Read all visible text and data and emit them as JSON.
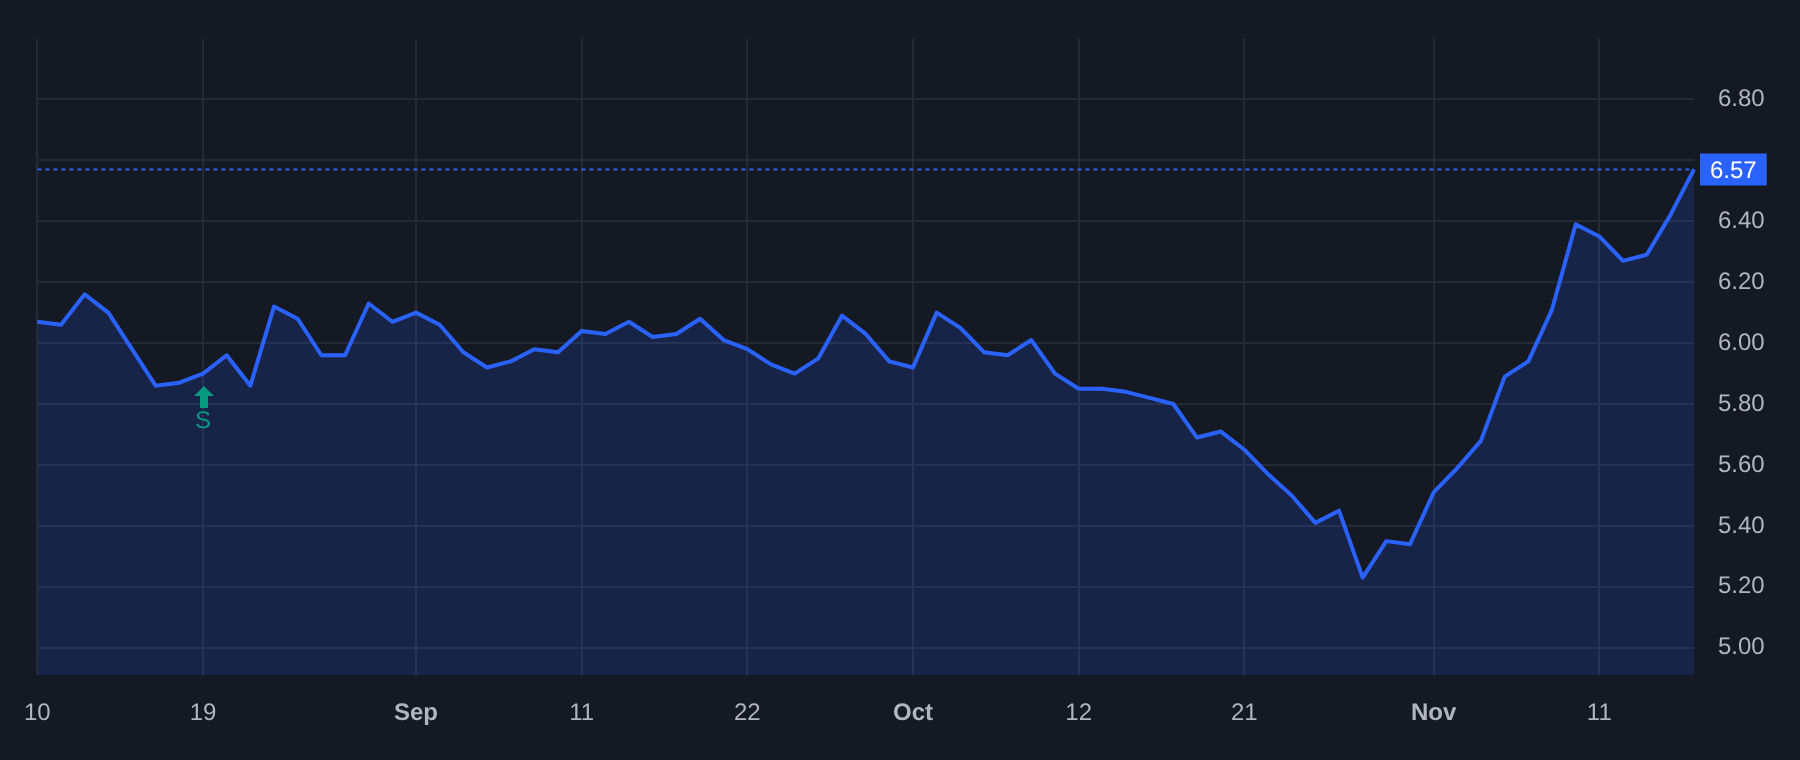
{
  "chart_data": {
    "type": "area",
    "color": "#2962ff",
    "categories": [
      "10",
      null,
      null,
      null,
      null,
      null,
      null,
      "19",
      null,
      null,
      null,
      null,
      null,
      null,
      null,
      null,
      "Sep",
      null,
      null,
      null,
      null,
      null,
      null,
      "11",
      null,
      null,
      null,
      null,
      null,
      null,
      "22",
      null,
      null,
      null,
      null,
      null,
      null,
      "Oct",
      null,
      null,
      null,
      null,
      null,
      null,
      "12",
      null,
      null,
      null,
      null,
      null,
      null,
      "21",
      null,
      null,
      null,
      null,
      null,
      null,
      null,
      "Nov",
      null,
      null,
      null,
      null,
      null,
      null,
      "11",
      null,
      null,
      null,
      null
    ],
    "values": [
      6.07,
      6.06,
      6.16,
      6.1,
      5.98,
      5.86,
      5.87,
      5.9,
      5.96,
      5.86,
      6.12,
      6.08,
      5.96,
      5.96,
      6.13,
      6.07,
      6.1,
      6.06,
      5.97,
      5.92,
      5.94,
      5.98,
      5.97,
      6.04,
      6.03,
      6.07,
      6.02,
      6.03,
      6.08,
      6.01,
      5.98,
      5.93,
      5.9,
      5.95,
      6.09,
      6.03,
      5.94,
      5.92,
      6.1,
      6.05,
      5.97,
      5.96,
      6.01,
      5.9,
      5.85,
      5.85,
      5.84,
      5.82,
      5.8,
      5.69,
      5.71,
      5.65,
      5.57,
      5.5,
      5.41,
      5.45,
      5.23,
      5.35,
      5.34,
      5.51,
      5.59,
      5.68,
      5.89,
      5.94,
      6.11,
      6.39,
      6.35,
      6.27,
      6.29,
      6.42,
      6.57
    ],
    "ylim": [
      4.91,
      7.0
    ],
    "yticks": [
      {
        "value": 5,
        "label": "5.00"
      },
      {
        "value": 5.2,
        "label": "5.20"
      },
      {
        "value": 5.4,
        "label": "5.40"
      },
      {
        "value": 5.6,
        "label": "5.60"
      },
      {
        "value": 5.8,
        "label": "5.80"
      },
      {
        "value": 6,
        "label": "6.00"
      },
      {
        "value": 6.2,
        "label": "6.20"
      },
      {
        "value": 6.4,
        "label": "6.40"
      },
      {
        "value": 6.6,
        "label": null
      },
      {
        "value": 6.8,
        "label": "6.80"
      }
    ],
    "grid": true,
    "marker": "none",
    "ref_lines": [
      {
        "axis": "y",
        "value": 6.57,
        "label": "6.57",
        "color": "#2962ff",
        "line_style": "dotted"
      }
    ],
    "annotations": [
      {
        "text": "S",
        "x": "19",
        "y": 5.9
      }
    ]
  }
}
